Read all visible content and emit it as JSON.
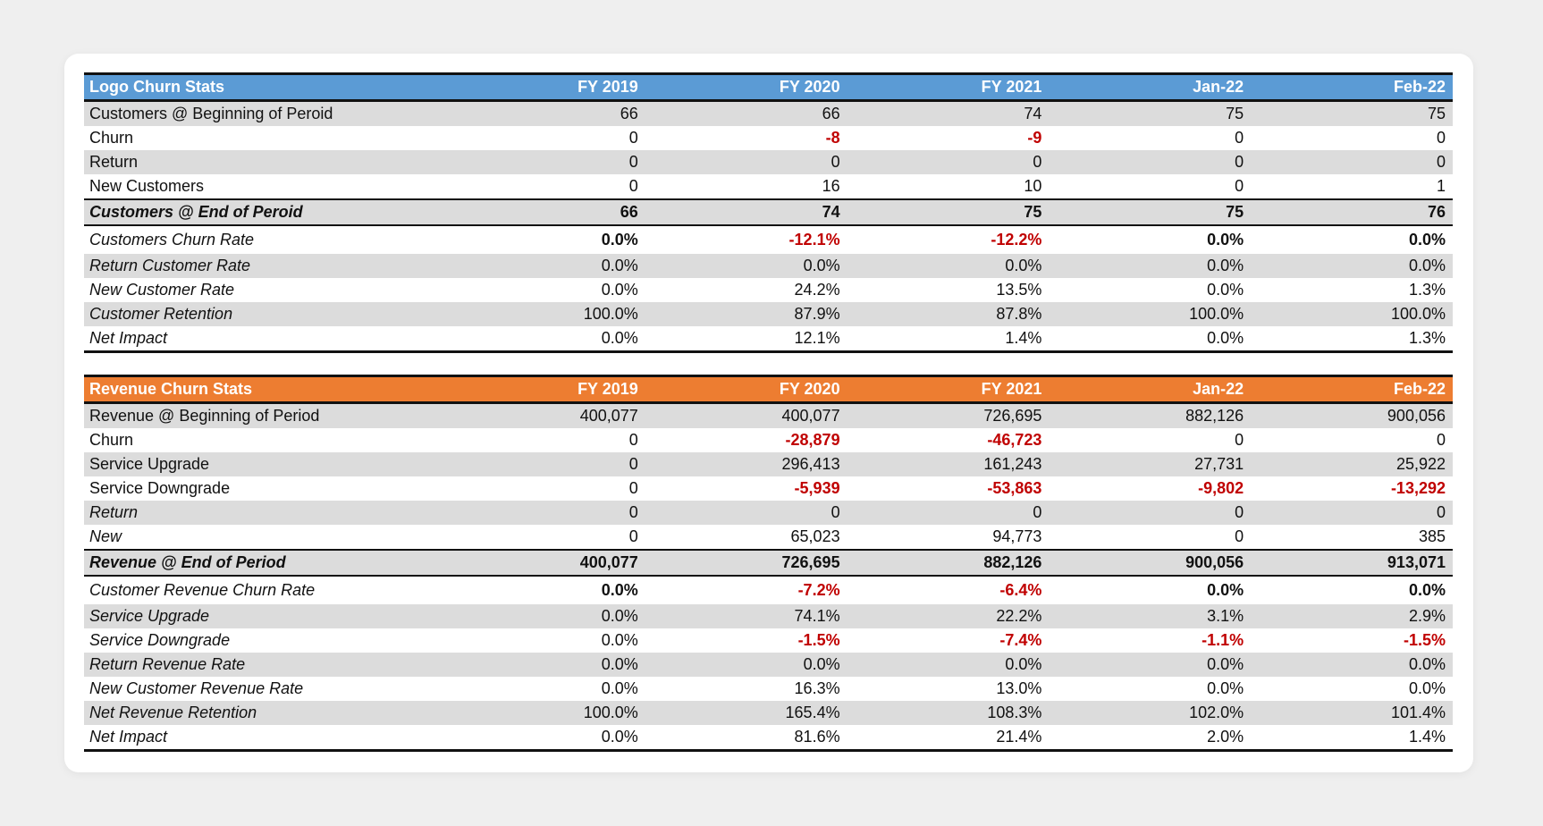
{
  "columns": [
    "FY 2019",
    "FY 2020",
    "FY 2021",
    "Jan-22",
    "Feb-22"
  ],
  "colors": {
    "logo_header": "#5b9bd5",
    "revenue_header": "#ed7d31",
    "negative": "#c00000"
  },
  "logo": {
    "title": "Logo Churn Stats",
    "rows": [
      {
        "label": "Customers @ Beginning of Peroid",
        "values": [
          "66",
          "66",
          "74",
          "75",
          "75"
        ]
      },
      {
        "label": "Churn",
        "values": [
          "0",
          "-8",
          "-9",
          "0",
          "0"
        ]
      },
      {
        "label": "Return",
        "values": [
          "0",
          "0",
          "0",
          "0",
          "0"
        ]
      },
      {
        "label": "New Customers",
        "values": [
          "0",
          "16",
          "10",
          "0",
          "1"
        ]
      },
      {
        "label": "Customers @ End of Peroid",
        "values": [
          "66",
          "74",
          "75",
          "75",
          "76"
        ]
      },
      {
        "label": "Customers Churn Rate",
        "values": [
          "0.0%",
          "-12.1%",
          "-12.2%",
          "0.0%",
          "0.0%"
        ]
      },
      {
        "label": "Return Customer Rate",
        "values": [
          "0.0%",
          "0.0%",
          "0.0%",
          "0.0%",
          "0.0%"
        ]
      },
      {
        "label": "New Customer Rate",
        "values": [
          "0.0%",
          "24.2%",
          "13.5%",
          "0.0%",
          "1.3%"
        ]
      },
      {
        "label": "Customer Retention",
        "values": [
          "100.0%",
          "87.9%",
          "87.8%",
          "100.0%",
          "100.0%"
        ]
      },
      {
        "label": "Net Impact",
        "values": [
          "0.0%",
          "12.1%",
          "1.4%",
          "0.0%",
          "1.3%"
        ]
      }
    ]
  },
  "revenue": {
    "title": "Revenue Churn Stats",
    "rows": [
      {
        "label": "Revenue @ Beginning of Period",
        "values": [
          "400,077",
          "400,077",
          "726,695",
          "882,126",
          "900,056"
        ]
      },
      {
        "label": "Churn",
        "values": [
          "0",
          "-28,879",
          "-46,723",
          "0",
          "0"
        ]
      },
      {
        "label": "Service Upgrade",
        "values": [
          "0",
          "296,413",
          "161,243",
          "27,731",
          "25,922"
        ]
      },
      {
        "label": "Service Downgrade",
        "values": [
          "0",
          "-5,939",
          "-53,863",
          "-9,802",
          "-13,292"
        ]
      },
      {
        "label": "Return",
        "values": [
          "0",
          "0",
          "0",
          "0",
          "0"
        ]
      },
      {
        "label": "New",
        "values": [
          "0",
          "65,023",
          "94,773",
          "0",
          "385"
        ]
      },
      {
        "label": "Revenue @ End of Period",
        "values": [
          "400,077",
          "726,695",
          "882,126",
          "900,056",
          "913,071"
        ]
      },
      {
        "label": "Customer Revenue Churn Rate",
        "values": [
          "0.0%",
          "-7.2%",
          "-6.4%",
          "0.0%",
          "0.0%"
        ]
      },
      {
        "label": "Service Upgrade",
        "values": [
          "0.0%",
          "74.1%",
          "22.2%",
          "3.1%",
          "2.9%"
        ]
      },
      {
        "label": "Service Downgrade",
        "values": [
          "0.0%",
          "-1.5%",
          "-7.4%",
          "-1.1%",
          "-1.5%"
        ]
      },
      {
        "label": "Return Revenue Rate",
        "values": [
          "0.0%",
          "0.0%",
          "0.0%",
          "0.0%",
          "0.0%"
        ]
      },
      {
        "label": "New Customer Revenue Rate",
        "values": [
          "0.0%",
          "16.3%",
          "13.0%",
          "0.0%",
          "0.0%"
        ]
      },
      {
        "label": "Net Revenue Retention",
        "values": [
          "100.0%",
          "165.4%",
          "108.3%",
          "102.0%",
          "101.4%"
        ]
      },
      {
        "label": "Net Impact",
        "values": [
          "0.0%",
          "81.6%",
          "21.4%",
          "2.0%",
          "1.4%"
        ]
      }
    ]
  }
}
